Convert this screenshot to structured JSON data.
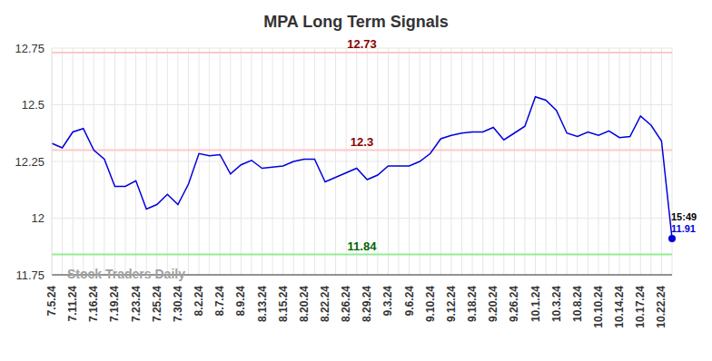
{
  "chart_data": {
    "type": "line",
    "title": "MPA Long Term Signals",
    "watermark": "Stock Traders Daily",
    "last_point_label": "15:49",
    "categories": [
      "7.5.24",
      null,
      "7.11.24",
      null,
      "7.16.24",
      null,
      "7.19.24",
      null,
      "7.23.24",
      null,
      "7.25.24",
      null,
      "7.30.24",
      null,
      "8.2.24",
      null,
      "8.7.24",
      null,
      "8.9.24",
      null,
      "8.13.24",
      null,
      "8.15.24",
      null,
      "8.20.24",
      null,
      "8.22.24",
      null,
      "8.26.24",
      null,
      "8.29.24",
      null,
      "9.3.24",
      null,
      "9.6.24",
      null,
      "9.10.24",
      null,
      "9.12.24",
      null,
      "9.18.24",
      null,
      "9.20.24",
      null,
      "9.26.24",
      null,
      "10.1.24",
      null,
      "10.3.24",
      null,
      "10.8.24",
      null,
      "10.10.24",
      null,
      "10.14.24",
      null,
      "10.17.24",
      null,
      "10.22.24",
      null
    ],
    "values": [
      12.33,
      12.31,
      12.38,
      12.395,
      12.3,
      12.26,
      12.14,
      12.14,
      12.165,
      12.04,
      12.06,
      12.105,
      12.06,
      12.15,
      12.285,
      12.275,
      12.28,
      12.195,
      12.235,
      12.255,
      12.22,
      12.225,
      12.23,
      12.25,
      12.26,
      12.26,
      12.16,
      12.18,
      12.2,
      12.22,
      12.17,
      12.19,
      12.23,
      12.23,
      12.23,
      12.25,
      12.285,
      12.35,
      12.365,
      12.375,
      12.38,
      12.38,
      12.4,
      12.345,
      12.375,
      12.405,
      12.535,
      12.52,
      12.475,
      12.375,
      12.36,
      12.38,
      12.365,
      12.385,
      12.355,
      12.36,
      12.45,
      12.41,
      12.34,
      11.91
    ],
    "color": "#0000dd",
    "ylim": [
      11.75,
      12.75
    ],
    "yticks": [
      11.75,
      12,
      12.25,
      12.5,
      12.75
    ],
    "grid": true,
    "reference_lines": [
      {
        "value": 12.73,
        "color": "#ffc8c8"
      },
      {
        "value": 12.3,
        "color": "#ffc8c8"
      },
      {
        "value": 11.84,
        "color": "#90ee90"
      }
    ]
  }
}
